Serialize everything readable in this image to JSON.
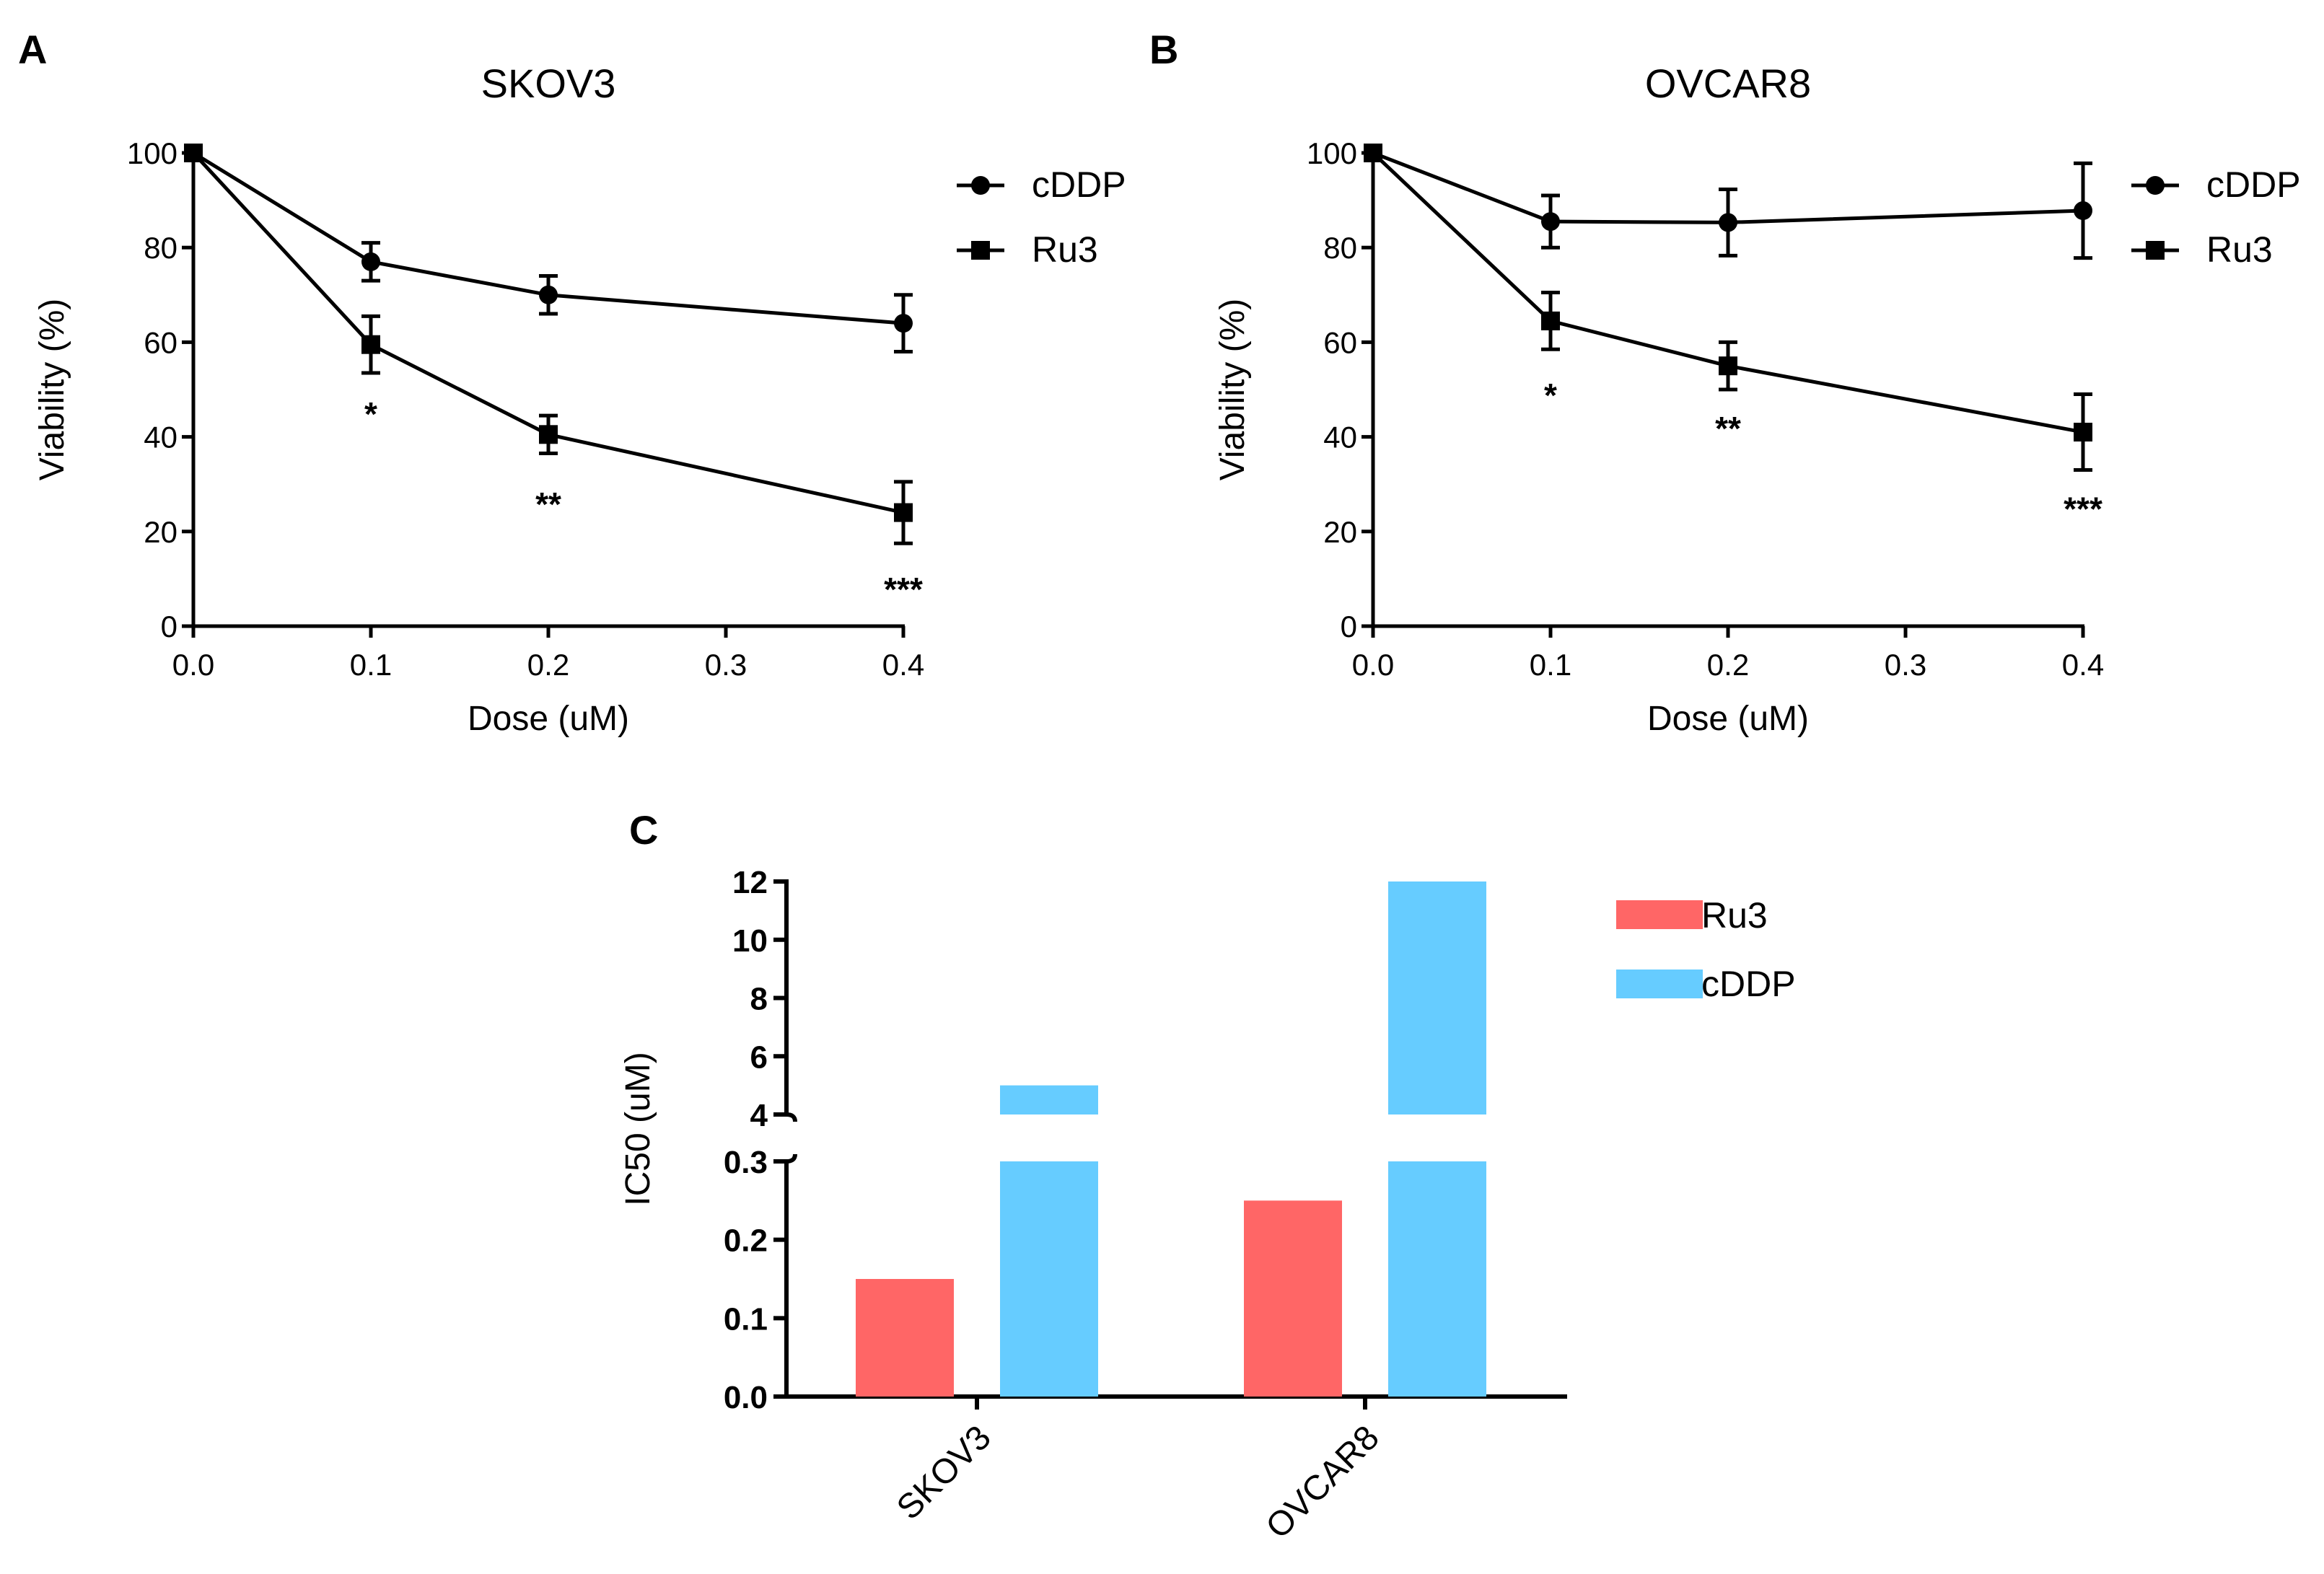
{
  "panels": {
    "a": "A",
    "b": "B",
    "c": "C"
  },
  "chart_data": [
    {
      "type": "line",
      "title": "SKOV3",
      "xlabel": "Dose (uM)",
      "ylabel": "Viability (%)",
      "xlim": [
        0,
        0.4
      ],
      "ylim": [
        0,
        100
      ],
      "xticks": [
        "0.0",
        "0.1",
        "0.2",
        "0.3",
        "0.4"
      ],
      "yticks": [
        "0",
        "20",
        "40",
        "60",
        "80",
        "100"
      ],
      "legend": [
        "cDDP",
        "Ru3"
      ],
      "series": [
        {
          "name": "cDDP",
          "marker": "circle",
          "x": [
            0,
            0.1,
            0.2,
            0.4
          ],
          "y": [
            100,
            77,
            70,
            64
          ],
          "err": [
            0,
            4,
            4,
            6
          ]
        },
        {
          "name": "Ru3",
          "marker": "square",
          "x": [
            0,
            0.1,
            0.2,
            0.4
          ],
          "y": [
            100,
            59.5,
            40.5,
            24
          ],
          "err": [
            0,
            6,
            4,
            6.5
          ]
        }
      ],
      "annotations": [
        {
          "x": 0.1,
          "y": 46,
          "text": "*"
        },
        {
          "x": 0.2,
          "y": 27,
          "text": "**"
        },
        {
          "x": 0.4,
          "y": 9,
          "text": "***"
        }
      ]
    },
    {
      "type": "line",
      "title": "OVCAR8",
      "xlabel": "Dose (uM)",
      "ylabel": "Viability (%)",
      "xlim": [
        0,
        0.4
      ],
      "ylim": [
        0,
        100
      ],
      "xticks": [
        "0.0",
        "0.1",
        "0.2",
        "0.3",
        "0.4"
      ],
      "yticks": [
        "0",
        "20",
        "40",
        "60",
        "80",
        "100"
      ],
      "legend": [
        "cDDP",
        "Ru3"
      ],
      "series": [
        {
          "name": "cDDP",
          "marker": "circle",
          "x": [
            0,
            0.1,
            0.2,
            0.4
          ],
          "y": [
            100,
            85.5,
            85.3,
            87.8
          ],
          "err": [
            0,
            5.5,
            7,
            10
          ]
        },
        {
          "name": "Ru3",
          "marker": "square",
          "x": [
            0,
            0.1,
            0.2,
            0.4
          ],
          "y": [
            100,
            64.5,
            55,
            41
          ],
          "err": [
            0,
            6,
            5,
            8
          ]
        }
      ],
      "annotations": [
        {
          "x": 0.1,
          "y": 50,
          "text": "*"
        },
        {
          "x": 0.2,
          "y": 43,
          "text": "**"
        },
        {
          "x": 0.4,
          "y": 26,
          "text": "***"
        }
      ]
    },
    {
      "type": "bar",
      "ylabel": "IC50 (uM)",
      "categories": [
        "SKOV3",
        "OVCAR8"
      ],
      "axis_break": {
        "lower": [
          0,
          0.3
        ],
        "upper": [
          4,
          12
        ]
      },
      "lower_ticks": [
        "0.0",
        "0.1",
        "0.2",
        "0.3"
      ],
      "upper_ticks": [
        "4",
        "6",
        "8",
        "10",
        "12"
      ],
      "legend": [
        "Ru3",
        "cDDP"
      ],
      "series": [
        {
          "name": "Ru3",
          "color": "#ff6666",
          "values": [
            0.15,
            0.25
          ]
        },
        {
          "name": "cDDP",
          "color": "#66ccff",
          "values": [
            5,
            12
          ]
        }
      ]
    }
  ]
}
